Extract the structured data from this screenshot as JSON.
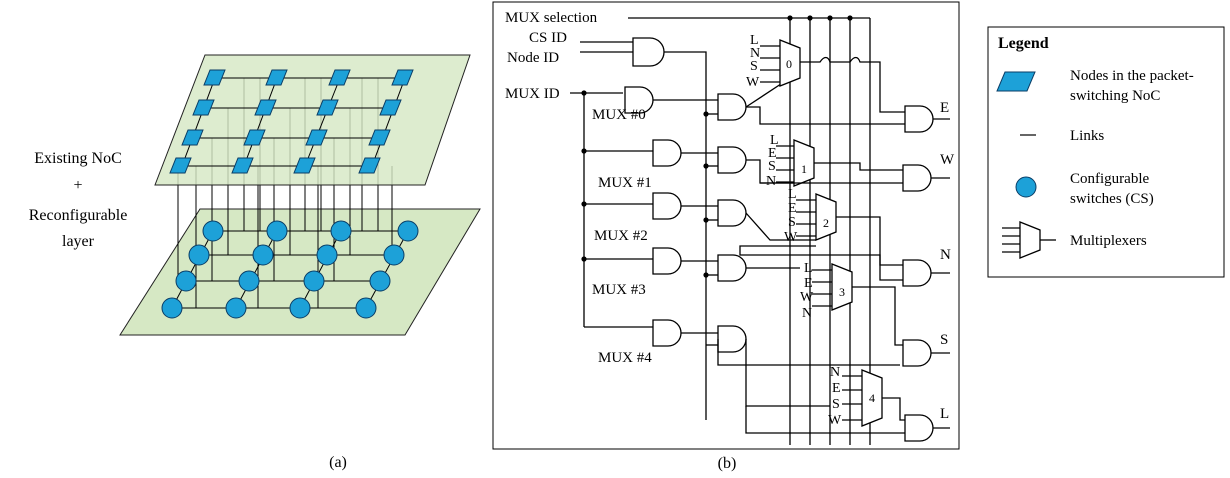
{
  "part_a": {
    "label_line1": "Existing NoC",
    "label_line2": "+",
    "label_line3": "Reconfigurable",
    "label_line4": "layer",
    "caption": "(a)"
  },
  "part_b": {
    "inputs": {
      "mux_selection": "MUX selection",
      "cs_id": "CS ID",
      "node_id": "Node ID",
      "mux_id": "MUX ID"
    },
    "mux_labels": [
      "MUX #0",
      "MUX #1",
      "MUX #2",
      "MUX #3",
      "MUX #4"
    ],
    "muxes": [
      {
        "id": "0",
        "inputs": [
          "L",
          "N",
          "S",
          "W"
        ],
        "output": "E"
      },
      {
        "id": "1",
        "inputs": [
          "L",
          "E",
          "S",
          "N"
        ],
        "output": "W"
      },
      {
        "id": "2",
        "inputs": [
          "L",
          "E",
          "S",
          "W"
        ],
        "output": "N"
      },
      {
        "id": "3",
        "inputs": [
          "L",
          "E",
          "W",
          "N"
        ],
        "output": "S"
      },
      {
        "id": "4",
        "inputs": [
          "N",
          "E",
          "S",
          "W"
        ],
        "output": "L"
      }
    ],
    "caption": "(b)"
  },
  "legend": {
    "title": "Legend",
    "nodes_line1": "Nodes in the packet-",
    "nodes_line2": "switching NoC",
    "links": "Links",
    "cs_line1": "Configurable",
    "cs_line2": "switches (CS)",
    "mux": "Multiplexers"
  },
  "colors": {
    "node_fill": "#1da1d8",
    "plane_fill": "#d6e8c4"
  }
}
